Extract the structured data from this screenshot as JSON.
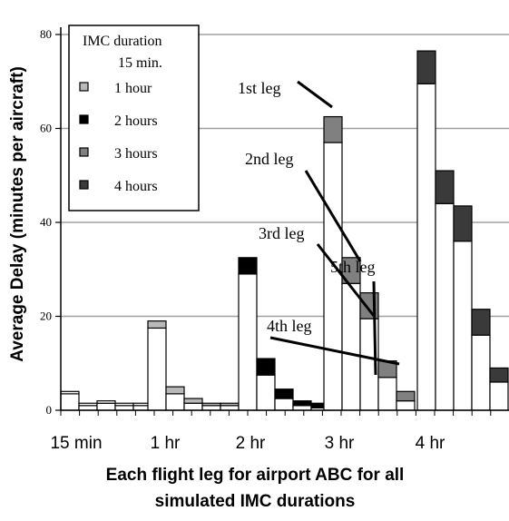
{
  "chart_data": {
    "type": "bar",
    "stacked": true,
    "title": "",
    "xlabel_line1": "Each flight leg for airport ABC for all",
    "xlabel_line2": "simulated IMC durations",
    "ylabel": "Average Delay (minutes per aircraft)",
    "ylim": [
      0,
      80
    ],
    "yticks": [
      "0",
      "20",
      "40",
      "60",
      "80"
    ],
    "y_gridlines": [
      20,
      40,
      60,
      80
    ],
    "x_group_labels": [
      "15 min",
      "1 hr",
      "2 hr",
      "3 hr",
      "4 hr"
    ],
    "legend": {
      "title_line1": "IMC duration",
      "title_line2": "15 min.",
      "entries": [
        {
          "label": "1 hour",
          "color": "#b9b9b9"
        },
        {
          "label": "2 hours",
          "color": "#000000"
        },
        {
          "label": "3 hours",
          "color": "#808080"
        },
        {
          "label": "4 hours",
          "color": "#3a3a3a"
        }
      ]
    },
    "series_colors": {
      "15 min": "#ffffff",
      "1 hr": "#b9b9b9",
      "2 hr": "#000000",
      "3 hr": "#808080",
      "4 hr": "#3a3a3a"
    },
    "groups": [
      {
        "name": "15 min",
        "base": [
          3.5,
          1.0,
          1.5,
          1.0,
          1.0
        ],
        "extra": [
          0.5,
          0.5,
          0.5,
          0.5,
          0.5
        ]
      },
      {
        "name": "1 hr",
        "base": [
          17.5,
          3.5,
          1.5,
          1.0,
          1.0
        ],
        "extra": [
          1.5,
          1.5,
          1.0,
          0.5,
          0.5
        ]
      },
      {
        "name": "2 hr",
        "base": [
          29.0,
          7.5,
          2.5,
          1.0,
          0.5
        ],
        "extra": [
          3.5,
          3.5,
          2.0,
          1.0,
          1.0
        ]
      },
      {
        "name": "3 hr",
        "base": [
          57.0,
          27.0,
          19.5,
          7.0,
          2.0
        ],
        "extra": [
          5.5,
          5.5,
          5.5,
          3.5,
          2.0
        ]
      },
      {
        "name": "4 hr",
        "base": [
          69.5,
          44.0,
          36.0,
          16.0,
          6.0
        ],
        "extra": [
          7.0,
          7.0,
          7.5,
          5.5,
          3.0
        ]
      }
    ],
    "annotations": [
      {
        "label": "1st leg",
        "group": 3,
        "leg": 0
      },
      {
        "label": "2nd leg",
        "group": 3,
        "leg": 1
      },
      {
        "label": "3rd leg",
        "group": 3,
        "leg": 2
      },
      {
        "label": "4th leg",
        "group": 3,
        "leg": 3
      },
      {
        "label": "5th leg",
        "group": 3,
        "leg": 4
      }
    ]
  }
}
